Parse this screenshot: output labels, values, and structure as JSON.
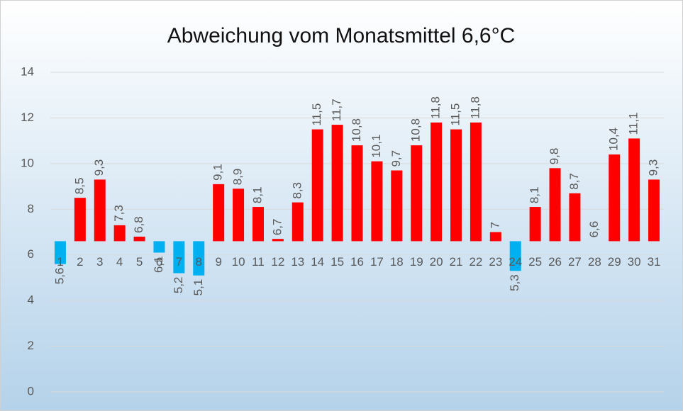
{
  "chart_data": {
    "type": "bar",
    "title": "Abweichung vom Monatsmittel 6,6°C",
    "baseline": 6.6,
    "categories": [
      "1",
      "2",
      "3",
      "4",
      "5",
      "6",
      "7",
      "8",
      "9",
      "10",
      "11",
      "12",
      "13",
      "14",
      "15",
      "16",
      "17",
      "18",
      "19",
      "20",
      "21",
      "22",
      "23",
      "24",
      "25",
      "26",
      "27",
      "28",
      "29",
      "30",
      "31"
    ],
    "values": [
      5.6,
      8.5,
      9.3,
      7.3,
      6.8,
      6.1,
      5.2,
      5.1,
      9.1,
      8.9,
      8.1,
      6.7,
      8.3,
      11.5,
      11.7,
      10.8,
      10.1,
      9.7,
      10.8,
      11.8,
      11.5,
      11.8,
      7,
      5.3,
      8.1,
      9.8,
      8.7,
      6.6,
      10.4,
      11.1,
      9.3
    ],
    "value_labels": [
      "5,6",
      "8,5",
      "9,3",
      "7,3",
      "6,8",
      "6,1",
      "5,2",
      "5,1",
      "9,1",
      "8,9",
      "8,1",
      "6,7",
      "8,3",
      "11,5",
      "11,7",
      "10,8",
      "10,1",
      "9,7",
      "10,8",
      "11,8",
      "11,5",
      "11,8",
      "7",
      "5,3",
      "8,1",
      "9,8",
      "8,7",
      "6,6",
      "10,4",
      "11,1",
      "9,3"
    ],
    "color_above": "#ff0000",
    "color_below": "#00b0f0",
    "ylim": [
      0,
      14
    ],
    "yticks": [
      0,
      2,
      4,
      6,
      8,
      10,
      12,
      14
    ],
    "grid": true
  }
}
